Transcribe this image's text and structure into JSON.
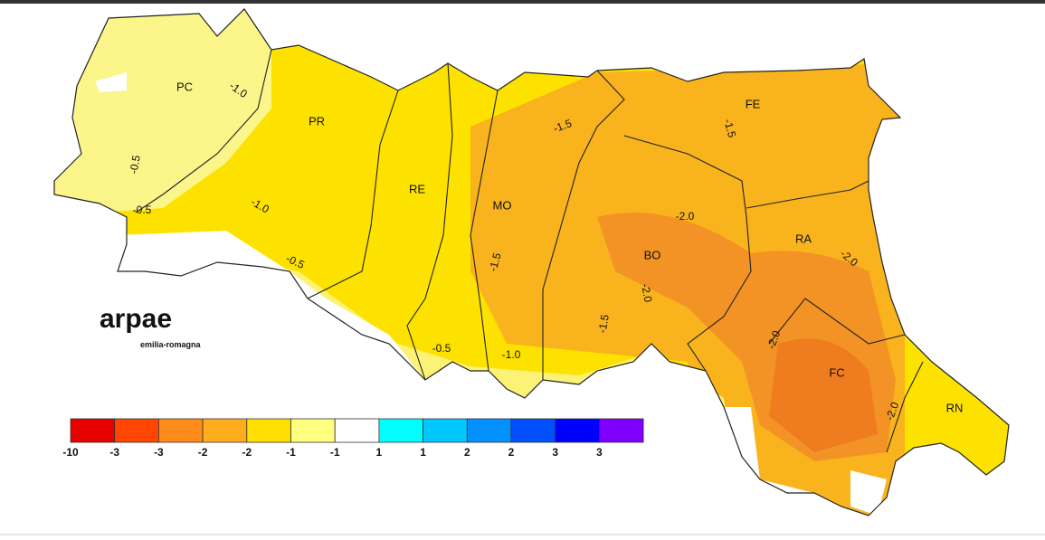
{
  "map": {
    "provinces": [
      {
        "label": "PC"
      },
      {
        "label": "PR"
      },
      {
        "label": "RE"
      },
      {
        "label": "MO"
      },
      {
        "label": "BO"
      },
      {
        "label": "FE"
      },
      {
        "label": "RA"
      },
      {
        "label": "FC"
      },
      {
        "label": "RN"
      }
    ],
    "contour_labels": [
      "-1.0",
      "-0.5",
      "-0.5",
      "-1.0",
      "-0.5",
      "-1.5",
      "-1.5",
      "-2.0",
      "-1.5",
      "-2.0",
      "-1.5",
      "-2.0",
      "-2.0",
      "-0.5",
      "-1.0",
      "-2.0"
    ]
  },
  "logo": {
    "name": "arpae",
    "subtitle": "emilia-romagna"
  },
  "legend": {
    "items": [
      {
        "label": "-10",
        "color": "#e60000"
      },
      {
        "label": "-3",
        "color": "#ff4500"
      },
      {
        "label": "-3",
        "color": "#ff8c1a"
      },
      {
        "label": "-2",
        "color": "#ffad1f"
      },
      {
        "label": "-2",
        "color": "#ffdf00"
      },
      {
        "label": "-1",
        "color": "#ffff80"
      },
      {
        "label": "-1",
        "color": "#ffffff"
      },
      {
        "label": "1",
        "color": "#00ffff"
      },
      {
        "label": "1",
        "color": "#00c8ff"
      },
      {
        "label": "2",
        "color": "#0090ff"
      },
      {
        "label": "2",
        "color": "#0050ff"
      },
      {
        "label": "3",
        "color": "#0000ff"
      },
      {
        "label": "3",
        "color": "#8000ff"
      }
    ]
  }
}
